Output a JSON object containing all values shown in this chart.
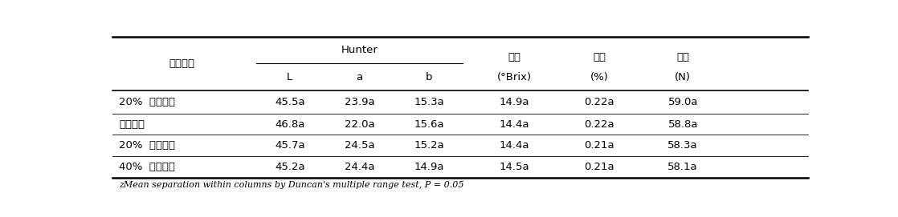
{
  "footnote": "zMean separation within columns by Duncan's multiple range test, P = 0.05",
  "col_headers_row1_left": "처리내용",
  "col_headers_row1_hunter": "Hunter",
  "col_headers_row2_hunter": [
    "L",
    "a",
    "b"
  ],
  "col_headers_right": [
    [
      "당도",
      "(°Brix)"
    ],
    [
      "산도",
      "(%)"
    ],
    [
      "경도",
      "(N)"
    ]
  ],
  "rows": [
    [
      "20%  과소착과",
      "45.5a",
      "23.9a",
      "15.3a",
      "14.9a",
      "0.22a",
      "59.0a"
    ],
    [
      "관행착과",
      "46.8a",
      "22.0a",
      "15.6a",
      "14.4a",
      "0.22a",
      "58.8a"
    ],
    [
      "20%  과다착과",
      "45.7a",
      "24.5a",
      "15.2a",
      "14.4a",
      "0.21a",
      "58.3a"
    ],
    [
      "40%  과다착과",
      "45.2a",
      "24.4a",
      "14.9a",
      "14.5a",
      "0.21a",
      "58.1a"
    ]
  ],
  "background_color": "#ffffff",
  "text_color": "#000000",
  "fontsize": 9.5,
  "footnote_fontsize": 8.0
}
